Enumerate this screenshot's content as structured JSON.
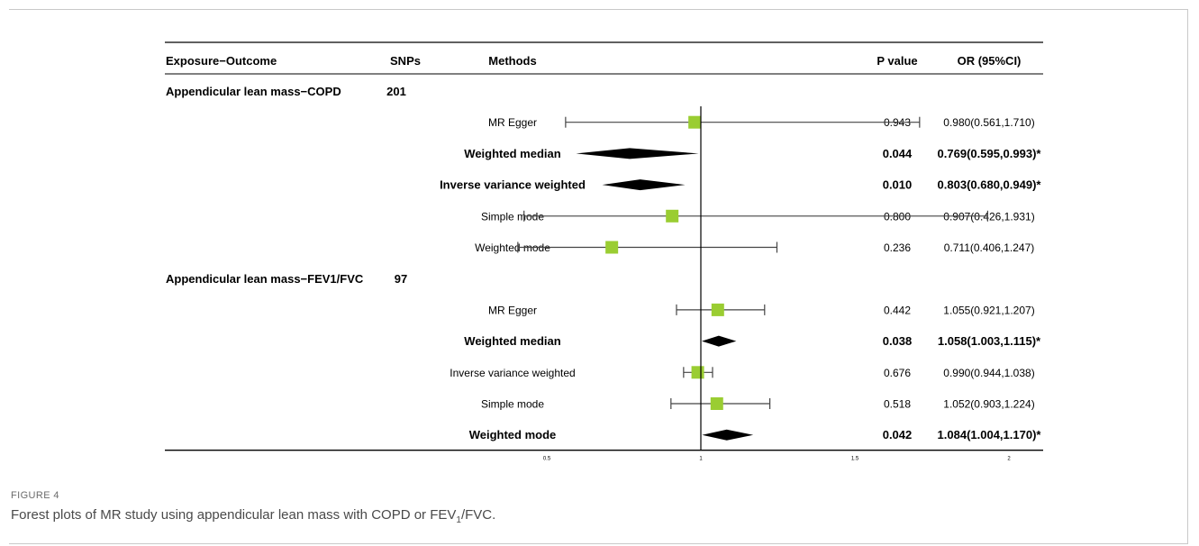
{
  "chart_data": {
    "type": "forest",
    "columns": {
      "exposure_outcome": "Exposure−Outcome",
      "snps": "SNPs",
      "methods": "Methods",
      "p_value": "P value",
      "or_ci": "OR (95%CI)"
    },
    "x_ticks": [
      0.5,
      1,
      1.5,
      2
    ],
    "x_tick_labels": [
      "0.5",
      "1",
      "1.5",
      "2"
    ],
    "reference_line": 1,
    "groups": [
      {
        "label": "Appendicular lean mass−COPD",
        "snps": "201",
        "rows": [
          {
            "method": "MR Egger",
            "p": "0.943",
            "or_text": "0.980(0.561,1.710)",
            "or": 0.98,
            "lo": 0.561,
            "hi": 1.71,
            "marker": "square",
            "bold": false
          },
          {
            "method": "Weighted median",
            "p": "0.044",
            "or_text": "0.769(0.595,0.993)*",
            "or": 0.769,
            "lo": 0.595,
            "hi": 0.993,
            "marker": "diamond",
            "bold": true
          },
          {
            "method": "Inverse variance weighted",
            "p": "0.010",
            "or_text": "0.803(0.680,0.949)*",
            "or": 0.803,
            "lo": 0.68,
            "hi": 0.949,
            "marker": "diamond",
            "bold": true
          },
          {
            "method": "Simple mode",
            "p": "0.800",
            "or_text": "0.907(0.426,1.931)",
            "or": 0.907,
            "lo": 0.426,
            "hi": 1.931,
            "marker": "square",
            "bold": false
          },
          {
            "method": "Weighted mode",
            "p": "0.236",
            "or_text": "0.711(0.406,1.247)",
            "or": 0.711,
            "lo": 0.406,
            "hi": 1.247,
            "marker": "square",
            "bold": false
          }
        ]
      },
      {
        "label": "Appendicular lean mass−FEV1/FVC",
        "snps": "97",
        "rows": [
          {
            "method": "MR Egger",
            "p": "0.442",
            "or_text": "1.055(0.921,1.207)",
            "or": 1.055,
            "lo": 0.921,
            "hi": 1.207,
            "marker": "square",
            "bold": false
          },
          {
            "method": "Weighted median",
            "p": "0.038",
            "or_text": "1.058(1.003,1.115)*",
            "or": 1.058,
            "lo": 1.003,
            "hi": 1.115,
            "marker": "diamond",
            "bold": true
          },
          {
            "method": "Inverse variance weighted",
            "p": "0.676",
            "or_text": "0.990(0.944,1.038)",
            "or": 0.99,
            "lo": 0.944,
            "hi": 1.038,
            "marker": "square",
            "bold": false
          },
          {
            "method": "Simple mode",
            "p": "0.518",
            "or_text": "1.052(0.903,1.224)",
            "or": 1.052,
            "lo": 0.903,
            "hi": 1.224,
            "marker": "square",
            "bold": false
          },
          {
            "method": "Weighted mode",
            "p": "0.042",
            "or_text": "1.084(1.004,1.170)*",
            "or": 1.084,
            "lo": 1.004,
            "hi": 1.17,
            "marker": "diamond",
            "bold": true
          }
        ]
      }
    ],
    "colors": {
      "square": "#9acd32",
      "diamond": "#000000",
      "line": "#444444"
    }
  },
  "caption": {
    "label": "FIGURE 4",
    "text_main": "Forest plots of MR study using appendicular lean mass with COPD or FEV",
    "text_sub": "1",
    "text_end": "/FVC."
  }
}
